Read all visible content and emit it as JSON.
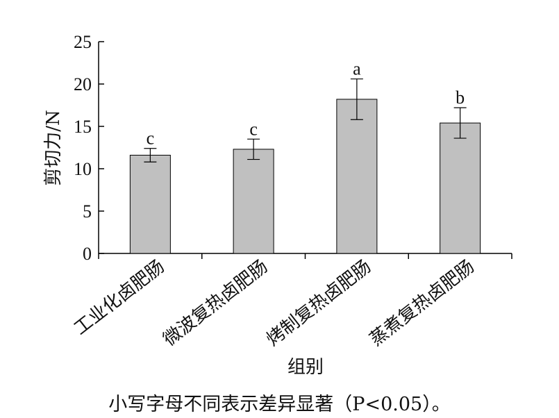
{
  "chart_data": {
    "type": "bar",
    "categories": [
      "工业化卤肥肠",
      "微波复热卤肥肠",
      "烤制复热卤肥肠",
      "蒸煮复热卤肥肠"
    ],
    "values": [
      11.6,
      12.3,
      18.2,
      15.4
    ],
    "errors": [
      0.8,
      1.2,
      2.4,
      1.8
    ],
    "significance": [
      "c",
      "c",
      "a",
      "b"
    ],
    "xlabel": "组别",
    "ylabel": "剪切力/N",
    "ylim": [
      0,
      25
    ],
    "yticks": [
      "0",
      "5",
      "10",
      "15",
      "20",
      "25"
    ],
    "bar_color": "#c0c0c0",
    "grid": false
  },
  "note": "小写字母不同表示差异显著（P<0.05）。"
}
